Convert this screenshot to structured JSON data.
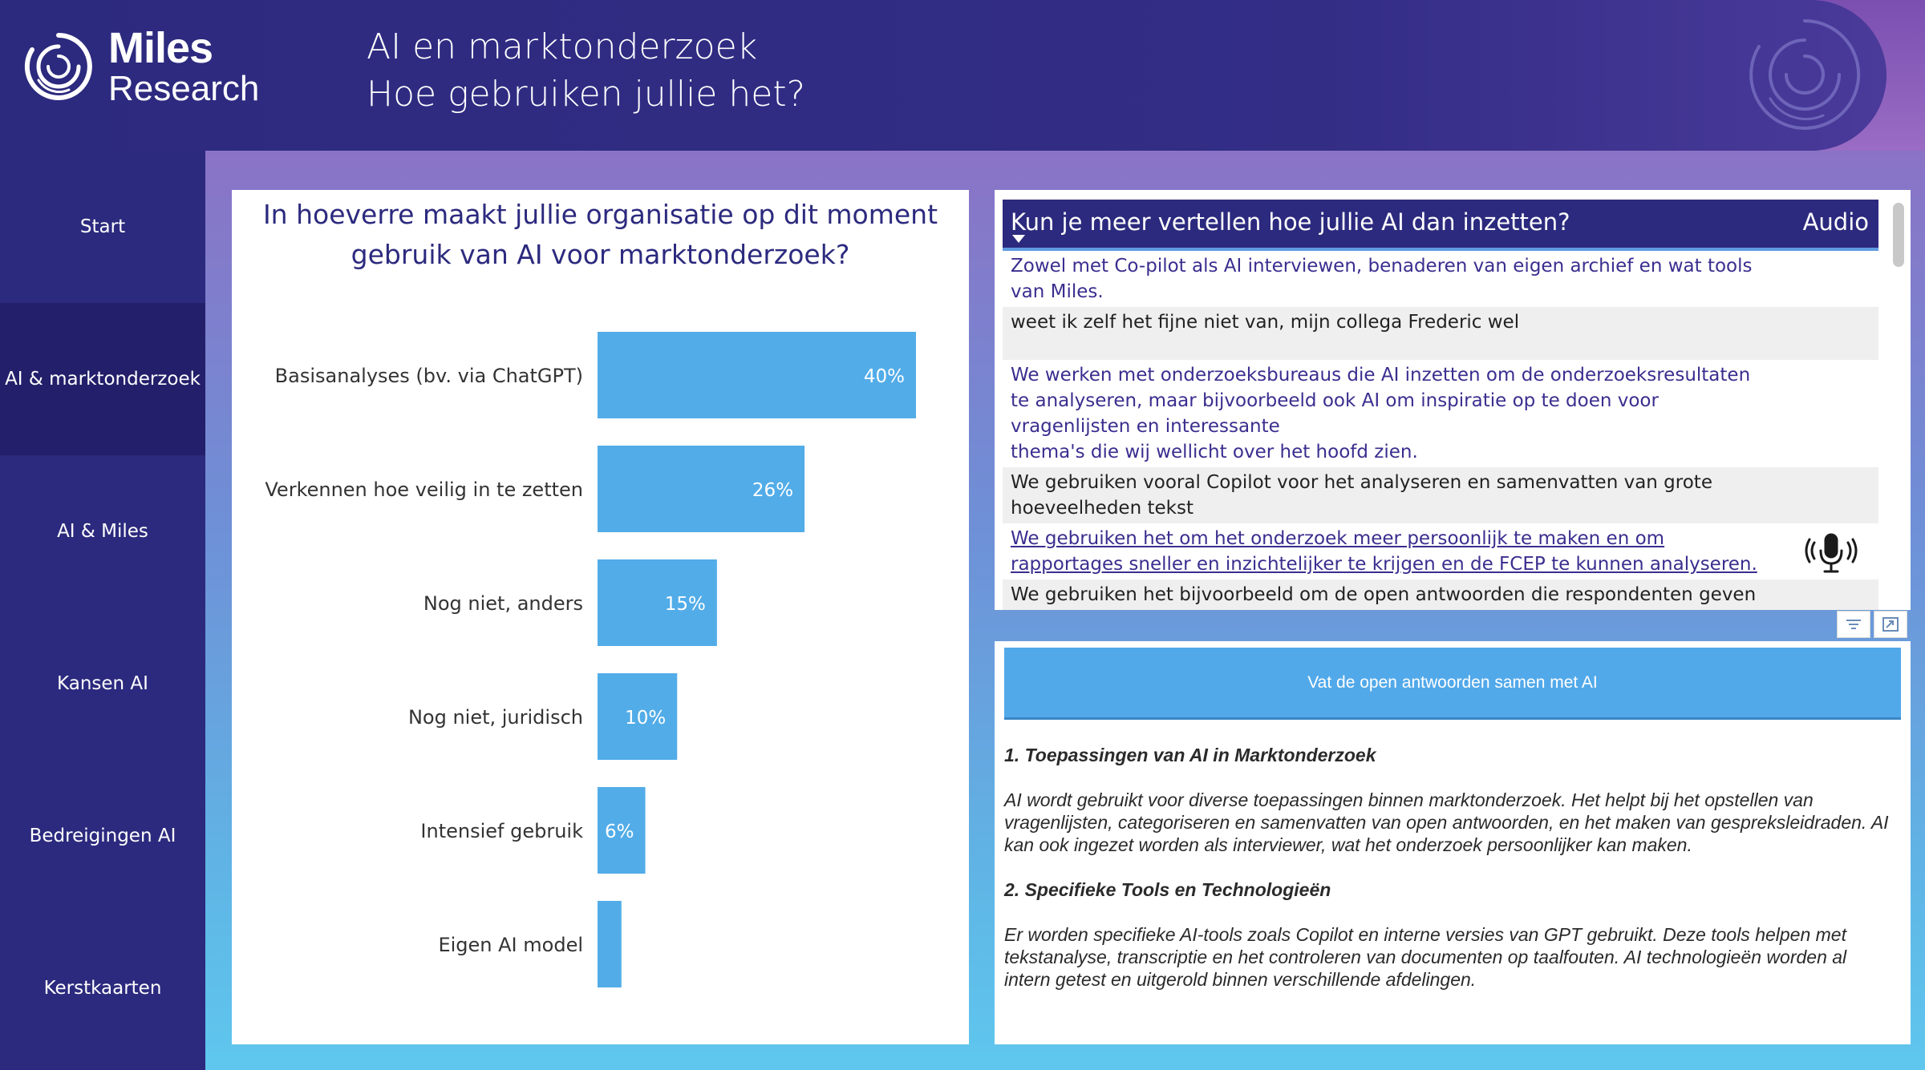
{
  "brand": {
    "name_line1": "Miles",
    "name_line2": "Research"
  },
  "header": {
    "title": "AI en marktonderzoek",
    "subtitle": "Hoe gebruiken jullie het?"
  },
  "sidebar": {
    "items": [
      {
        "label": "Start",
        "active": false
      },
      {
        "label": "AI & marktonderzoek",
        "active": true
      },
      {
        "label": "AI & Miles",
        "active": false
      },
      {
        "label": "Kansen AI",
        "active": false
      },
      {
        "label": "Bedreigingen AI",
        "active": false
      },
      {
        "label": "Kerstkaarten",
        "active": false
      }
    ]
  },
  "chart_data": {
    "type": "bar",
    "orientation": "horizontal",
    "title_line1": "In hoeverre maakt jullie organisatie op dit moment",
    "title_line2": "gebruik van AI voor marktonderzoek?",
    "categories": [
      "Basisanalyses (bv. via ChatGPT)",
      "Verkennen hoe veilig in te zetten",
      "Nog niet, anders",
      "Nog niet, juridisch",
      "Intensief gebruik",
      "Eigen AI model"
    ],
    "values": [
      40,
      26,
      15,
      10,
      6,
      3
    ],
    "data_labels": [
      "40%",
      "26%",
      "15%",
      "10%",
      "6%",
      ""
    ],
    "bar_color": "#52ace8",
    "label_color": "#ffffff",
    "xlim": [
      0,
      40
    ],
    "grid": false
  },
  "table": {
    "header_question": "Kun je meer vertellen hoe jullie AI dan inzetten?",
    "header_audio": "Audio",
    "rows": [
      {
        "text": "Zowel met Co-pilot als AI interviewen, benaderen van eigen archief en wat tools van Miles.",
        "style": "blue",
        "alt": false,
        "audio": false
      },
      {
        "text": "weet ik zelf het fijne niet van, mijn collega Frederic wel",
        "style": "dark",
        "alt": true,
        "audio": false
      },
      {
        "text": "We werken met onderzoeksbureaus die AI inzetten om de onderzoeksresultaten te analyseren, maar bijvoorbeeld ook AI om inspiratie op te doen voor vragenlijsten en interessante\nthema's die wij wellicht over het hoofd zien.",
        "style": "blue",
        "alt": false,
        "audio": false
      },
      {
        "text": "We gebruiken vooral Copilot voor het analyseren en samenvatten van grote hoeveelheden tekst",
        "style": "dark",
        "alt": true,
        "audio": false
      },
      {
        "text": "We gebruiken het om het onderzoek meer persoonlijk te maken en om rapportages sneller en inzichtelijker te krijgen en de FCEP te kunnen analyseren.",
        "style": "link",
        "alt": false,
        "audio": true
      },
      {
        "text": "We gebruiken het bijvoorbeeld om de open antwoorden die respondenten geven te",
        "style": "dark",
        "alt": true,
        "audio": false
      }
    ]
  },
  "summary": {
    "button_label": "Vat de open antwoorden samen met AI",
    "heading1": "1. Toepassingen van AI in Marktonderzoek",
    "para1": "AI wordt gebruikt voor diverse toepassingen binnen marktonderzoek. Het helpt bij het opstellen van vragenlijsten, categoriseren en samenvatten van open antwoorden, en het maken van gespreksleidraden. AI kan ook ingezet worden als interviewer, wat het onderzoek persoonlijker kan maken.",
    "heading2": "2. Specifieke Tools en Technologieën",
    "para2": "Er worden specifieke AI-tools zoals Copilot en interne versies van GPT gebruikt. Deze tools helpen met tekstanalyse, transcriptie en het controleren van documenten op taalfouten. AI technologieën worden al intern getest en uitgerold binnen verschillende afdelingen."
  },
  "colors": {
    "brand_navy": "#2c2a7e",
    "accent_blue": "#52a9ea",
    "bar_blue": "#52ace8"
  },
  "icons": [
    "miles-logo-icon",
    "watermark-logo-icon",
    "sort-arrow-icon",
    "microphone-icon",
    "filter-icon",
    "focus-mode-icon"
  ]
}
